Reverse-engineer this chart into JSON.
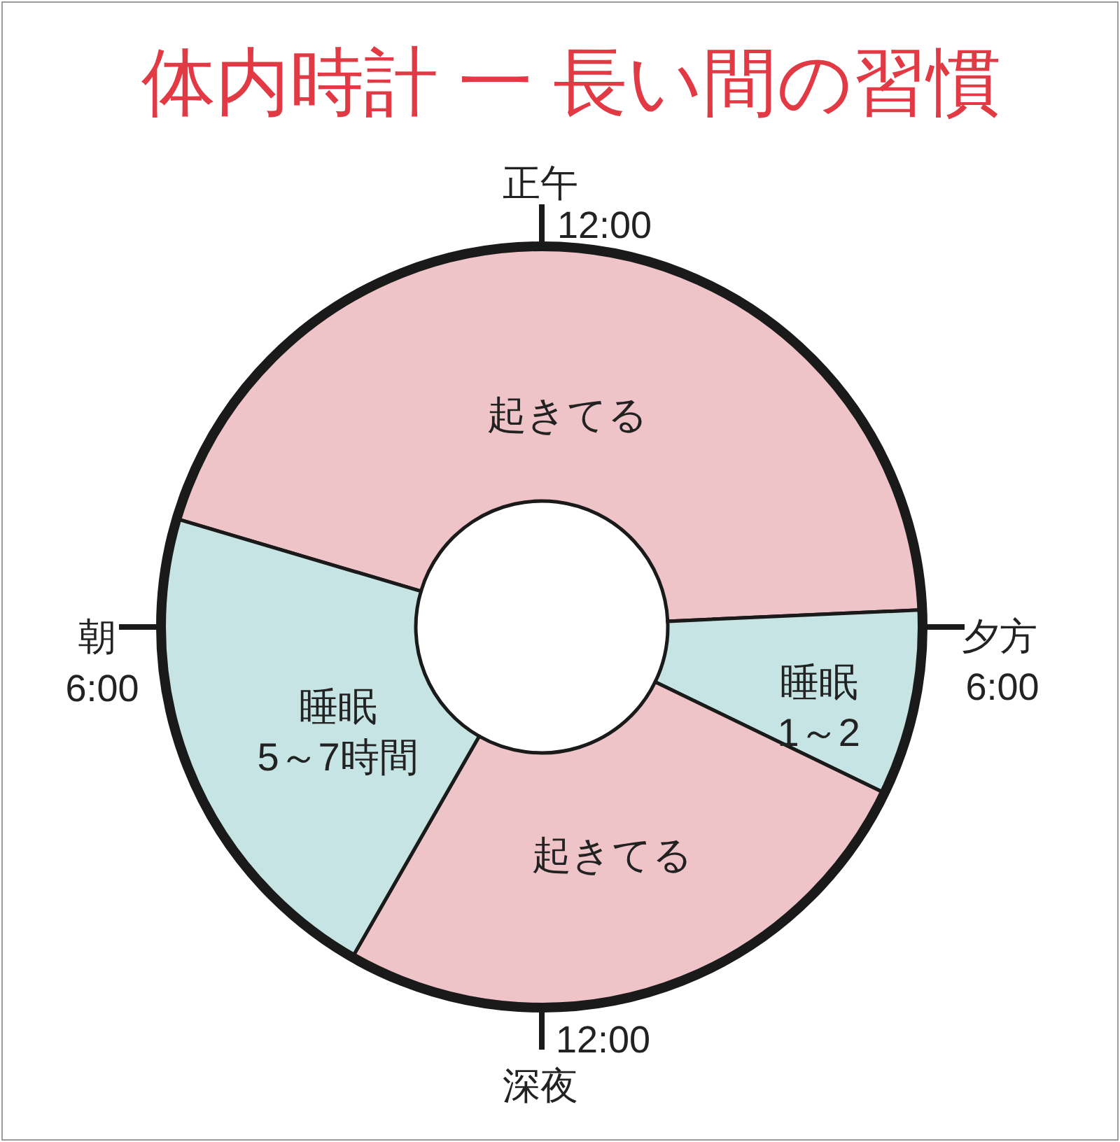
{
  "chart_data": {
    "type": "donut",
    "title": "体内時計 一 長い間の習慣",
    "categories": [
      "起きてる",
      "睡眠\n1～2",
      "起きてる",
      "睡眠\n5～7時間"
    ],
    "values": [
      44.7,
      7.9,
      26.1,
      21.3
    ],
    "colors": [
      "#efc4c8",
      "#c5e4e3",
      "#efc4c8",
      "#c5e4e3"
    ],
    "annotations": [
      "正午",
      "12:00",
      "夕方",
      "6:00",
      "深夜",
      "12:00",
      "朝",
      "6:00"
    ]
  }
}
